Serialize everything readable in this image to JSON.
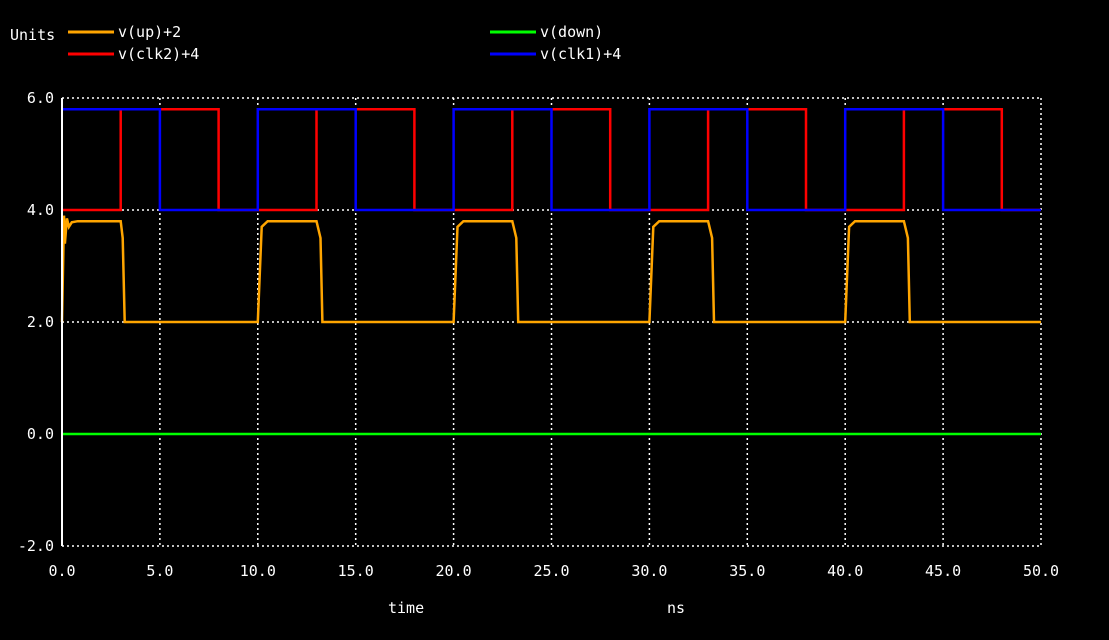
{
  "chart_data": {
    "type": "line",
    "ylabel": "Units",
    "xlabel": "time",
    "xunit": "ns",
    "xlim": [
      0,
      50
    ],
    "ylim": [
      -2,
      6
    ],
    "xticks": [
      0,
      5,
      10,
      15,
      20,
      25,
      30,
      35,
      40,
      45,
      50
    ],
    "xtick_labels": [
      "0.0",
      "5.0",
      "10.0",
      "15.0",
      "20.0",
      "25.0",
      "30.0",
      "35.0",
      "40.0",
      "45.0",
      "50.0"
    ],
    "yticks": [
      -2,
      0,
      2,
      4,
      6
    ],
    "ytick_labels": [
      "-2.0",
      "0.0",
      "2.0",
      "4.0",
      "6.0"
    ],
    "grid": true,
    "legend_position": "top",
    "series": [
      {
        "name": "v(up)+2",
        "color": "#ffa500",
        "x": [
          0,
          0.1,
          0.15,
          0.25,
          0.35,
          0.5,
          0.8,
          1.0,
          3.0,
          3.1,
          3.2,
          10.0,
          10.2,
          10.5,
          13.0,
          13.2,
          13.3,
          20.0,
          20.2,
          20.5,
          23.0,
          23.2,
          23.3,
          30.0,
          30.2,
          30.5,
          33.0,
          33.2,
          33.3,
          40.0,
          40.2,
          40.5,
          43.0,
          43.2,
          43.3,
          50.0
        ],
        "values": [
          2.0,
          3.9,
          3.4,
          3.85,
          3.7,
          3.78,
          3.8,
          3.8,
          3.8,
          3.5,
          2.0,
          2.0,
          3.7,
          3.8,
          3.8,
          3.5,
          2.0,
          2.0,
          3.7,
          3.8,
          3.8,
          3.5,
          2.0,
          2.0,
          3.7,
          3.8,
          3.8,
          3.5,
          2.0,
          2.0,
          3.7,
          3.8,
          3.8,
          3.5,
          2.0,
          2.0
        ]
      },
      {
        "name": "v(down)",
        "color": "#00ff00",
        "x": [
          0,
          50
        ],
        "values": [
          0,
          0
        ]
      },
      {
        "name": "v(clk2)+4",
        "color": "#ff0000",
        "x": [
          0,
          3.0,
          3.0,
          8.0,
          8.0,
          13.0,
          13.0,
          18.0,
          18.0,
          23.0,
          23.0,
          28.0,
          28.0,
          33.0,
          33.0,
          38.0,
          38.0,
          43.0,
          43.0,
          48.0,
          48.0,
          50.0
        ],
        "values": [
          4,
          4,
          5.8,
          5.8,
          4,
          4,
          5.8,
          5.8,
          4,
          4,
          5.8,
          5.8,
          4,
          4,
          5.8,
          5.8,
          4,
          4,
          5.8,
          5.8,
          4,
          4
        ]
      },
      {
        "name": "v(clk1)+4",
        "color": "#0000ff",
        "x": [
          0,
          5.0,
          5.0,
          10.0,
          10.0,
          15.0,
          15.0,
          20.0,
          20.0,
          25.0,
          25.0,
          30.0,
          30.0,
          35.0,
          35.0,
          40.0,
          40.0,
          45.0,
          45.0,
          50.0
        ],
        "values": [
          5.8,
          5.8,
          4,
          4,
          5.8,
          5.8,
          4,
          4,
          5.8,
          5.8,
          4,
          4,
          5.8,
          5.8,
          4,
          4,
          5.8,
          5.8,
          4,
          4
        ]
      }
    ]
  }
}
